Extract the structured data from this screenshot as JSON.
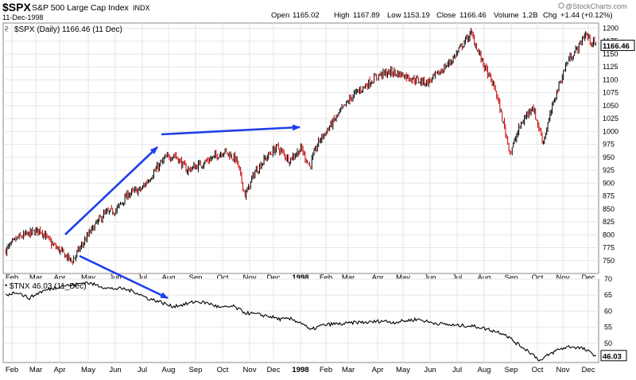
{
  "header": {
    "symbol": "$SPX",
    "name": "S&P 500 Large Cap Index",
    "exchange": "INDX",
    "date": "11-Dec-1998",
    "quote_labels": [
      "Open",
      "High",
      "Low",
      "Close",
      "Volume",
      "Chg"
    ],
    "open": "1165.02",
    "high": "1167.89",
    "low": "1153.19",
    "close": "1166.46",
    "volume": "1.2B",
    "change": "+1.44 (+0.12%)",
    "watermark": "@StockCharts.com"
  },
  "chart_data": [
    {
      "type": "line",
      "style": "candlestick",
      "legend": "$SPX (Daily) 1166.46 (11 Dec)",
      "last_value_label": "1166.46",
      "x_tick_labels": [
        "Feb",
        "Mar",
        "Apr",
        "May",
        "Jun",
        "Jul",
        "Aug",
        "Sep",
        "Oct",
        "Nov",
        "Dec",
        "1998",
        "Feb",
        "Mar",
        "Apr",
        "May",
        "Jun",
        "Jul",
        "Aug",
        "Sep",
        "Oct",
        "Nov",
        "Dec"
      ],
      "y_tick_labels": [
        750,
        775,
        800,
        825,
        850,
        875,
        900,
        925,
        950,
        975,
        1000,
        1025,
        1050,
        1075,
        1100,
        1125,
        1150,
        1175,
        1200
      ],
      "ylim": [
        725,
        1210
      ],
      "grid": true,
      "up_color": "#000000",
      "down_color": "#cc0000",
      "x": [
        "1997-01-24",
        "1997-02-07",
        "1997-02-21",
        "1997-03-07",
        "1997-03-21",
        "1997-04-04",
        "1997-04-14",
        "1997-04-21",
        "1997-05-05",
        "1997-05-19",
        "1997-06-02",
        "1997-06-16",
        "1997-06-30",
        "1997-07-14",
        "1997-07-28",
        "1997-08-08",
        "1997-08-22",
        "1997-09-05",
        "1997-09-19",
        "1997-10-03",
        "1997-10-17",
        "1997-10-27",
        "1997-11-07",
        "1997-11-21",
        "1997-12-05",
        "1997-12-19",
        "1998-01-02",
        "1998-01-12",
        "1998-01-23",
        "1998-02-06",
        "1998-02-20",
        "1998-03-06",
        "1998-03-20",
        "1998-04-03",
        "1998-04-17",
        "1998-05-01",
        "1998-05-15",
        "1998-05-29",
        "1998-06-12",
        "1998-06-26",
        "1998-07-10",
        "1998-07-17",
        "1998-07-31",
        "1998-08-14",
        "1998-08-31",
        "1998-09-11",
        "1998-09-25",
        "1998-10-08",
        "1998-10-23",
        "1998-11-06",
        "1998-11-20",
        "1998-11-27",
        "1998-12-04",
        "1998-12-11"
      ],
      "values": [
        770,
        793,
        802,
        810,
        783,
        765,
        748,
        770,
        810,
        840,
        848,
        880,
        888,
        920,
        948,
        955,
        925,
        935,
        948,
        962,
        945,
        875,
        920,
        948,
        970,
        945,
        967,
        932,
        980,
        1010,
        1040,
        1070,
        1090,
        1110,
        1115,
        1110,
        1100,
        1095,
        1115,
        1140,
        1175,
        1190,
        1130,
        1080,
        958,
        1010,
        1050,
        980,
        1070,
        1135,
        1165,
        1190,
        1175,
        1166
      ]
    },
    {
      "type": "line",
      "legend": "$TNX 46.03 (11_Dec)",
      "last_value_label": "46.03",
      "y_tick_labels": [
        50,
        55,
        60,
        65,
        70
      ],
      "ylim": [
        44,
        70
      ],
      "grid": true,
      "line_color": "#000000",
      "x": [
        "1997-01-24",
        "1997-02-07",
        "1997-02-21",
        "1997-03-07",
        "1997-03-21",
        "1997-04-04",
        "1997-04-14",
        "1997-04-28",
        "1997-05-12",
        "1997-05-26",
        "1997-06-09",
        "1997-06-23",
        "1997-07-07",
        "1997-07-21",
        "1997-08-04",
        "1997-08-18",
        "1997-09-01",
        "1997-09-15",
        "1997-09-29",
        "1997-10-13",
        "1997-10-27",
        "1997-11-10",
        "1997-11-24",
        "1997-12-08",
        "1997-12-22",
        "1998-01-05",
        "1998-01-12",
        "1998-01-26",
        "1998-02-09",
        "1998-02-23",
        "1998-03-09",
        "1998-03-23",
        "1998-04-06",
        "1998-04-20",
        "1998-05-04",
        "1998-05-18",
        "1998-06-01",
        "1998-06-15",
        "1998-06-29",
        "1998-07-13",
        "1998-07-27",
        "1998-08-10",
        "1998-08-24",
        "1998-09-07",
        "1998-09-21",
        "1998-10-05",
        "1998-10-12",
        "1998-10-26",
        "1998-11-09",
        "1998-11-23",
        "1998-12-04",
        "1998-12-11"
      ],
      "values": [
        65,
        66,
        64,
        66,
        67,
        68,
        68,
        69,
        68,
        67,
        67,
        66,
        64,
        63,
        61.5,
        62,
        63,
        62.5,
        61,
        61.5,
        59.5,
        59,
        58.5,
        57.5,
        57.5,
        56,
        54,
        55.5,
        56,
        56,
        56.5,
        56.5,
        57,
        56.5,
        57,
        57.5,
        56.5,
        56,
        55.5,
        55.5,
        55,
        54,
        53,
        50,
        47.5,
        44.5,
        46,
        48,
        49,
        48.5,
        47,
        46.03
      ]
    }
  ]
}
